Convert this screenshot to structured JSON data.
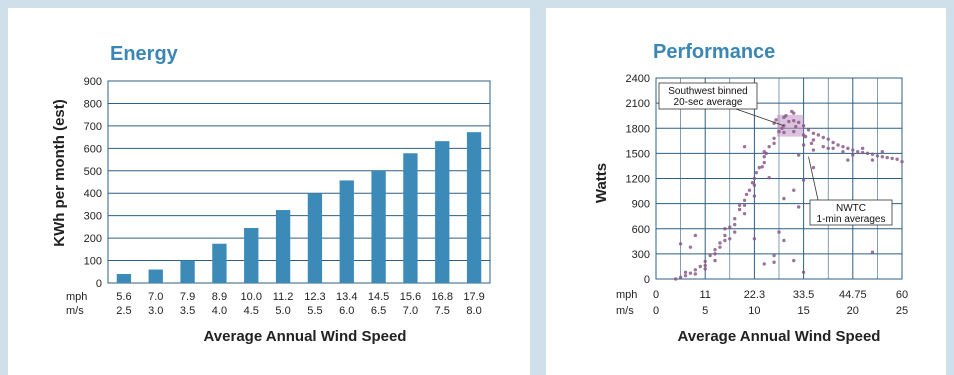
{
  "chart_data": [
    {
      "type": "bar",
      "title": "Energy",
      "ylabel": "KWh per month (est)",
      "xlabel": "Average Annual Wind Speed",
      "unit_labels": [
        "mph",
        "m/s"
      ],
      "categories_mph": [
        "5.6",
        "7.0",
        "7.9",
        "8.9",
        "10.0",
        "11.2",
        "12.3",
        "13.4",
        "14.5",
        "15.6",
        "16.8",
        "17.9"
      ],
      "categories_ms": [
        "2.5",
        "3.0",
        "3.5",
        "4.0",
        "4.5",
        "5.0",
        "5.5",
        "6.0",
        "6.5",
        "7.0",
        "7.5",
        "8.0"
      ],
      "values": [
        40,
        60,
        100,
        175,
        245,
        325,
        400,
        457,
        500,
        578,
        632,
        672
      ],
      "ylim": [
        0,
        900
      ],
      "yticks": [
        0,
        100,
        200,
        300,
        400,
        500,
        600,
        700,
        800,
        900
      ],
      "grid": true,
      "colors": {
        "bar": "#3c8ab8",
        "title": "#3a86b5"
      }
    },
    {
      "type": "scatter",
      "title": "Performance",
      "ylabel": "Watts",
      "xlabel": "Average Annual Wind Speed",
      "unit_labels": [
        "mph",
        "m/s"
      ],
      "xticks_mph": [
        "0",
        "11",
        "22.3",
        "33.5",
        "44.75",
        "60"
      ],
      "xticks_ms": [
        "0",
        "5",
        "10",
        "15",
        "20",
        "25"
      ],
      "xlim": [
        0,
        25
      ],
      "ylim": [
        0,
        2400
      ],
      "yticks": [
        0,
        300,
        600,
        900,
        1200,
        1500,
        1800,
        2100,
        2400
      ],
      "grid": true,
      "annotations": [
        {
          "lines": [
            "Southwest binned",
            "20-sec average"
          ]
        },
        {
          "lines": [
            "NWTC",
            "1-min averages"
          ]
        }
      ],
      "series": [
        {
          "points": [
            [
              2,
              0
            ],
            [
              2.5,
              20
            ],
            [
              3,
              40
            ],
            [
              3.5,
              70
            ],
            [
              4,
              110
            ],
            [
              4.5,
              150
            ],
            [
              5,
              210
            ],
            [
              5.5,
              280
            ],
            [
              6,
              350
            ],
            [
              6.5,
              430
            ],
            [
              7,
              520
            ],
            [
              7.5,
              620
            ],
            [
              8,
              720
            ],
            [
              8.5,
              830
            ],
            [
              9,
              940
            ],
            [
              9.5,
              1060
            ],
            [
              10,
              1200
            ],
            [
              10.5,
              1330
            ],
            [
              11,
              1460
            ],
            [
              11.5,
              1580
            ],
            [
              12,
              1680
            ],
            [
              12.5,
              1760
            ],
            [
              13,
              1830
            ],
            [
              13.5,
              1880
            ],
            [
              14,
              1890
            ],
            [
              14.5,
              1870
            ],
            [
              15,
              1830
            ],
            [
              15.5,
              1780
            ],
            [
              16,
              1740
            ],
            [
              16.5,
              1720
            ],
            [
              17,
              1690
            ],
            [
              17.5,
              1670
            ],
            [
              18,
              1630
            ],
            [
              18.5,
              1600
            ],
            [
              19,
              1580
            ],
            [
              19.5,
              1560
            ],
            [
              20,
              1540
            ],
            [
              20.5,
              1520
            ],
            [
              21,
              1510
            ],
            [
              21.5,
              1500
            ],
            [
              22,
              1490
            ],
            [
              22.5,
              1470
            ],
            [
              23,
              1460
            ],
            [
              23.5,
              1450
            ],
            [
              24,
              1440
            ],
            [
              24.5,
              1430
            ],
            [
              25,
              1400
            ],
            [
              3,
              80
            ],
            [
              4,
              60
            ],
            [
              5,
              160
            ],
            [
              6,
              300
            ],
            [
              7,
              460
            ],
            [
              8,
              650
            ],
            [
              9,
              880
            ],
            [
              10,
              1120
            ],
            [
              11,
              1390
            ],
            [
              12,
              1620
            ],
            [
              13,
              1750
            ],
            [
              14,
              1980
            ],
            [
              15,
              1720
            ],
            [
              16,
              1660
            ],
            [
              17,
              1580
            ],
            [
              18,
              1560
            ],
            [
              19,
              1520
            ],
            [
              20,
              1480
            ],
            [
              21,
              1560
            ],
            [
              22,
              1420
            ],
            [
              7,
              600
            ],
            [
              8,
              560
            ],
            [
              9,
              780
            ],
            [
              10,
              990
            ],
            [
              11,
              1520
            ],
            [
              12,
              1860
            ],
            [
              13,
              1930
            ],
            [
              14,
              1760
            ],
            [
              15,
              1600
            ],
            [
              16,
              1540
            ],
            [
              5,
              120
            ],
            [
              6,
              220
            ],
            [
              9.2,
              1010
            ],
            [
              10.2,
              1270
            ],
            [
              11.2,
              1500
            ],
            [
              12.2,
              1900
            ],
            [
              13.2,
              1950
            ],
            [
              14.2,
              1820
            ],
            [
              15.2,
              1700
            ],
            [
              17.5,
              1560
            ],
            [
              6.5,
              380
            ],
            [
              7.5,
              480
            ],
            [
              8.5,
              880
            ],
            [
              9.8,
              1150
            ],
            [
              10.8,
              1340
            ],
            [
              12.8,
              1800
            ],
            [
              13.8,
              2000
            ],
            [
              15.8,
              1620
            ],
            [
              19.5,
              1420
            ],
            [
              23,
              1520
            ],
            [
              4,
              520
            ],
            [
              3.5,
              380
            ],
            [
              2.5,
              420
            ],
            [
              9,
              1580
            ],
            [
              10,
              480
            ],
            [
              11,
              180
            ],
            [
              12,
              200
            ],
            [
              12.5,
              560
            ],
            [
              13,
              960
            ],
            [
              14,
              1060
            ],
            [
              14.5,
              860
            ],
            [
              15,
              1180
            ],
            [
              13,
              460
            ],
            [
              12,
              280
            ],
            [
              14,
              220
            ],
            [
              15,
              80
            ],
            [
              16,
              1330
            ],
            [
              14.5,
              1480
            ],
            [
              11.5,
              1210
            ],
            [
              22,
              320
            ]
          ]
        }
      ],
      "colors": {
        "points": "#8a5a8a",
        "binned": "#c090c0",
        "title": "#3a86b5"
      }
    }
  ]
}
